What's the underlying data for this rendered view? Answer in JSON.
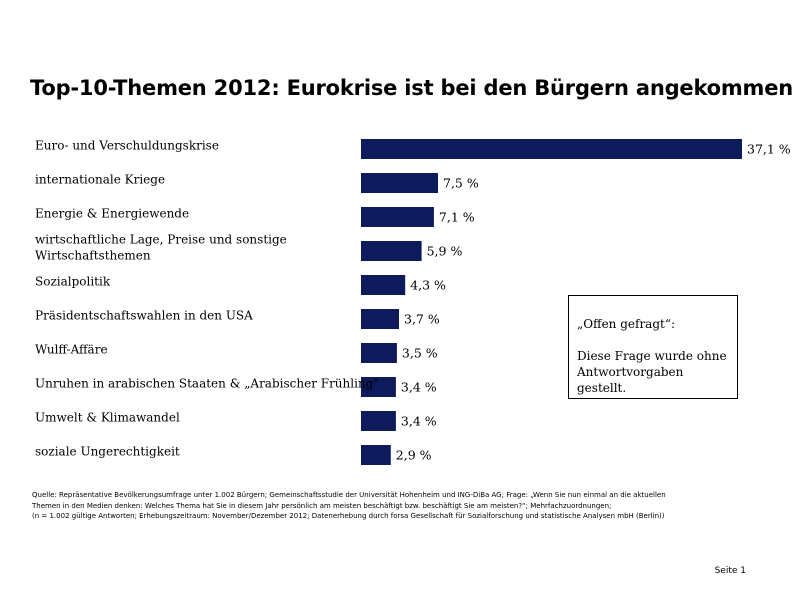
{
  "title": "Top-10-Themen 2012: Eurokrise ist bei den Bürgern angekommen",
  "chart_data": {
    "type": "bar",
    "orientation": "horizontal",
    "title": "Top-10-Themen 2012: Eurokrise ist bei den Bürgern angekommen",
    "bar_color": "#0d1a5c",
    "xlim": [
      0,
      37.1
    ],
    "items": [
      {
        "label": [
          "Euro- und Verschuldungskrise"
        ],
        "value": 37.1,
        "value_label": "37,1 %"
      },
      {
        "label": [
          "internationale Kriege"
        ],
        "value": 7.5,
        "value_label": "7,5 %"
      },
      {
        "label": [
          "Energie & Energiewende"
        ],
        "value": 7.1,
        "value_label": "7,1 %"
      },
      {
        "label": [
          "wirtschaftliche Lage, Preise und sonstige",
          "Wirtschaftsthemen"
        ],
        "value": 5.9,
        "value_label": "5,9 %"
      },
      {
        "label": [
          "Sozialpolitik"
        ],
        "value": 4.3,
        "value_label": "4,3 %"
      },
      {
        "label": [
          "Präsidentschaftswahlen in den USA"
        ],
        "value": 3.7,
        "value_label": "3,7 %"
      },
      {
        "label": [
          "Wulff-Affäre"
        ],
        "value": 3.5,
        "value_label": "3,5 %"
      },
      {
        "label": [
          "Unruhen in arabischen Staaten & „Arabischer Frühling\""
        ],
        "value": 3.4,
        "value_label": "3,4 %"
      },
      {
        "label": [
          "Umwelt & Klimawandel"
        ],
        "value": 3.4,
        "value_label": "3,4 %"
      },
      {
        "label": [
          "soziale Ungerechtigkeit"
        ],
        "value": 2.9,
        "value_label": "2,9 %"
      }
    ]
  },
  "note": {
    "heading": "„Offen gefragt“:",
    "lines": [
      "Diese Frage wurde ohne",
      "Antwortvorgaben gestellt."
    ]
  },
  "source": {
    "lines": [
      "Quelle: Repräsentative Bevölkerungsumfrage unter 1.002 Bürgern; Gemeinschaftsstudie der Universität Hohenheim und ING-DiBa AG; Frage: „Wenn Sie nun einmal an die aktuellen",
      "Themen in den Medien denken: Welches Thema hat Sie in diesem Jahr persönlich am meisten beschäftigt bzw. beschäftigt Sie am meisten?“; Mehrfachzuordnungen;",
      "(n = 1.002 gültige Antworten; Erhebungszeitraum: November/Dezember 2012; Datenerhebung durch forsa Gesellschaft für Sozialforschung und statistische Analysen mbH (Berlin))"
    ]
  },
  "footer": {
    "page": "Seite  1"
  }
}
